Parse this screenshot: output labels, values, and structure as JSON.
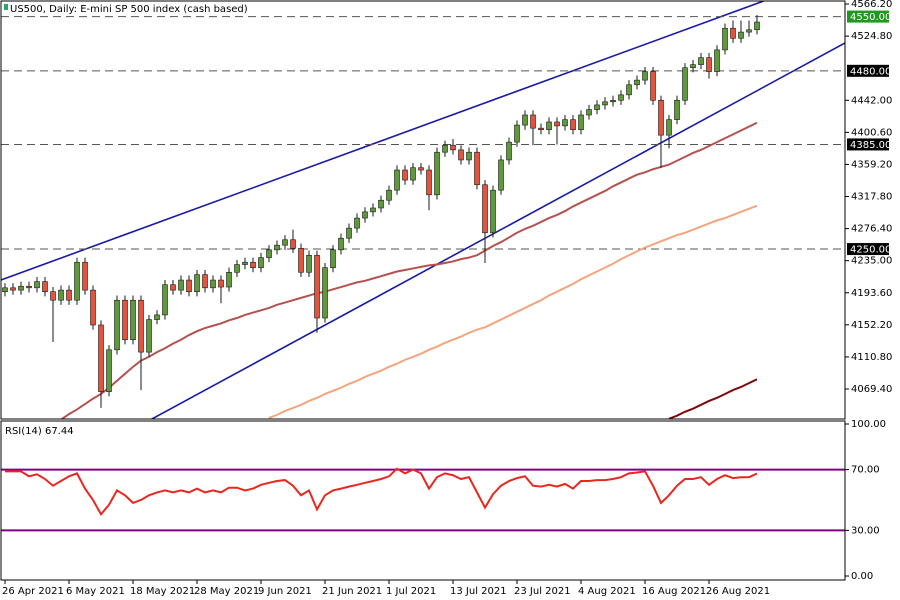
{
  "chart_data": [
    {
      "type": "candlestick",
      "title": "US500, Daily: E-mini SP 500 index (cash based)",
      "categories": [
        "26 Apr 2021",
        null,
        null,
        null,
        null,
        null,
        null,
        null,
        "6 May 2021",
        null,
        null,
        null,
        null,
        null,
        null,
        null,
        "18 May 2021",
        null,
        null,
        null,
        null,
        null,
        null,
        null,
        "28 May 2021",
        null,
        null,
        null,
        null,
        null,
        null,
        null,
        "9 Jun 2021",
        null,
        null,
        null,
        null,
        null,
        null,
        null,
        "21 Jun 2021",
        null,
        null,
        null,
        null,
        null,
        null,
        null,
        "1 Jul 2021",
        null,
        null,
        null,
        null,
        null,
        null,
        null,
        "13 Jul 2021",
        null,
        null,
        null,
        null,
        null,
        null,
        null,
        "23 Jul 2021",
        null,
        null,
        null,
        null,
        null,
        null,
        null,
        "4 Aug 2021",
        null,
        null,
        null,
        null,
        null,
        null,
        null,
        "16 Aug 2021",
        null,
        null,
        null,
        null,
        null,
        null,
        null,
        "26 Aug 2021",
        null,
        null,
        null,
        null,
        null,
        null
      ],
      "open": [
        4195,
        4200,
        4197,
        4202,
        4200,
        4208,
        4195,
        4184,
        4197,
        4184,
        4233,
        4197,
        4152,
        4066,
        4120,
        4184,
        4133,
        4184,
        4117,
        4159,
        4165,
        4204,
        4197,
        4210,
        4195,
        4217,
        4200,
        4210,
        4201,
        4220,
        4230,
        4233,
        4226,
        4239,
        4249,
        4255,
        4262,
        4251,
        4220,
        4242,
        4161,
        4226,
        4249,
        4264,
        4277,
        4290,
        4298,
        4303,
        4313,
        4326,
        4352,
        4339,
        4355,
        4352,
        4320,
        4375,
        4384,
        4378,
        4365,
        4375,
        4333,
        4271,
        4326,
        4365,
        4388,
        4410,
        4423,
        4406,
        4404,
        4414,
        4409,
        4417,
        4404,
        4423,
        4430,
        4436,
        4440,
        4442,
        4449,
        4462,
        4468,
        4479,
        4442,
        4397,
        4417,
        4442,
        4484,
        4488,
        4497,
        4479,
        4507,
        4535,
        4522,
        4530,
        4533
      ],
      "high": [
        4206,
        4206,
        4208,
        4208,
        4214,
        4214,
        4201,
        4203,
        4203,
        4239,
        4239,
        4203,
        4158,
        4126,
        4190,
        4190,
        4190,
        4190,
        4165,
        4171,
        4210,
        4210,
        4216,
        4216,
        4223,
        4223,
        4216,
        4216,
        4226,
        4236,
        4239,
        4239,
        4245,
        4255,
        4261,
        4268,
        4275,
        4257,
        4248,
        4248,
        4232,
        4255,
        4270,
        4283,
        4296,
        4304,
        4309,
        4319,
        4332,
        4358,
        4358,
        4361,
        4361,
        4358,
        4381,
        4390,
        4392,
        4384,
        4381,
        4381,
        4339,
        4332,
        4371,
        4394,
        4416,
        4429,
        4429,
        4412,
        4420,
        4420,
        4423,
        4423,
        4429,
        4436,
        4442,
        4446,
        4448,
        4455,
        4468,
        4474,
        4485,
        4485,
        4448,
        4423,
        4448,
        4490,
        4494,
        4503,
        4503,
        4513,
        4541,
        4545,
        4545,
        4545,
        4552
      ],
      "low": [
        4189,
        4191,
        4191,
        4194,
        4194,
        4189,
        4130,
        4178,
        4178,
        4178,
        4191,
        4146,
        4045,
        4060,
        4114,
        4127,
        4127,
        4068,
        4111,
        4153,
        4159,
        4191,
        4191,
        4189,
        4189,
        4194,
        4194,
        4180,
        4195,
        4214,
        4224,
        4220,
        4220,
        4233,
        4243,
        4249,
        4245,
        4214,
        4214,
        4142,
        4155,
        4220,
        4243,
        4258,
        4271,
        4284,
        4292,
        4297,
        4307,
        4320,
        4333,
        4333,
        4346,
        4300,
        4314,
        4369,
        4372,
        4359,
        4359,
        4327,
        4232,
        4265,
        4320,
        4359,
        4382,
        4404,
        4384,
        4398,
        4398,
        4385,
        4403,
        4398,
        4398,
        4417,
        4424,
        4430,
        4434,
        4436,
        4443,
        4456,
        4462,
        4436,
        4355,
        4380,
        4411,
        4436,
        4478,
        4482,
        4470,
        4473,
        4501,
        4516,
        4516,
        4524,
        4527
      ],
      "close": [
        4200,
        4197,
        4202,
        4200,
        4208,
        4195,
        4184,
        4197,
        4184,
        4233,
        4197,
        4152,
        4066,
        4120,
        4184,
        4133,
        4184,
        4117,
        4159,
        4165,
        4204,
        4197,
        4210,
        4195,
        4217,
        4200,
        4210,
        4201,
        4220,
        4230,
        4233,
        4226,
        4239,
        4249,
        4255,
        4262,
        4251,
        4220,
        4242,
        4161,
        4226,
        4249,
        4264,
        4277,
        4290,
        4298,
        4303,
        4313,
        4326,
        4352,
        4339,
        4355,
        4352,
        4320,
        4375,
        4384,
        4378,
        4365,
        4375,
        4333,
        4271,
        4326,
        4365,
        4388,
        4410,
        4423,
        4406,
        4404,
        4414,
        4409,
        4417,
        4404,
        4423,
        4430,
        4436,
        4440,
        4442,
        4449,
        4462,
        4468,
        4479,
        4442,
        4397,
        4417,
        4442,
        4484,
        4488,
        4497,
        4479,
        4507,
        4535,
        4522,
        4530,
        4533,
        4543
      ],
      "up_color": "#5e9a3a",
      "down_color": "#e4533b",
      "wick_color": "#1a1a1a",
      "moving_averages": [
        {
          "color": "#b5524f",
          "values": [
            null,
            null,
            null,
            null,
            null,
            null,
            null,
            4030,
            4037,
            4043,
            4050,
            4057,
            4063,
            4071,
            4080,
            4089,
            4098,
            4106,
            4111,
            4117,
            4122,
            4128,
            4133,
            4139,
            4144,
            4148,
            4151,
            4154,
            4158,
            4161,
            4165,
            4168,
            4171,
            4174,
            4178,
            4181,
            4184,
            4187,
            4190,
            4193,
            4195,
            4198,
            4201,
            4204,
            4207,
            4209,
            4212,
            4215,
            4218,
            4221,
            4223,
            4225,
            4227,
            4229,
            4230,
            4232,
            4234,
            4237,
            4239,
            4242,
            4248,
            4254,
            4259,
            4265,
            4271,
            4276,
            4280,
            4285,
            4290,
            4294,
            4299,
            4305,
            4310,
            4315,
            4320,
            4325,
            4331,
            4336,
            4341,
            4346,
            4349,
            4353,
            4356,
            4359,
            4364,
            4369,
            4374,
            4378,
            4383,
            4388,
            4393,
            4398,
            4403,
            4408,
            4413
          ]
        },
        {
          "color": "#f4a57e",
          "values": [
            null,
            null,
            null,
            null,
            null,
            null,
            null,
            null,
            null,
            null,
            null,
            null,
            null,
            null,
            null,
            null,
            null,
            null,
            null,
            null,
            null,
            null,
            null,
            null,
            null,
            null,
            null,
            null,
            null,
            null,
            null,
            null,
            null,
            4032,
            4036,
            4041,
            4045,
            4049,
            4054,
            4058,
            4063,
            4067,
            4071,
            4076,
            4080,
            4085,
            4089,
            4093,
            4098,
            4102,
            4107,
            4111,
            4115,
            4120,
            4124,
            4129,
            4133,
            4137,
            4142,
            4146,
            4149,
            4154,
            4159,
            4164,
            4169,
            4174,
            4179,
            4184,
            4190,
            4195,
            4200,
            4205,
            4211,
            4216,
            4221,
            4226,
            4231,
            4237,
            4242,
            4247,
            4252,
            4256,
            4260,
            4264,
            4268,
            4271,
            4275,
            4279,
            4283,
            4287,
            4290,
            4294,
            4298,
            4302,
            4306
          ]
        },
        {
          "color": "#7a0a0a",
          "values": [
            null,
            null,
            null,
            null,
            null,
            null,
            null,
            null,
            null,
            null,
            null,
            null,
            null,
            null,
            null,
            null,
            null,
            null,
            null,
            null,
            null,
            null,
            null,
            null,
            null,
            null,
            null,
            null,
            null,
            null,
            null,
            null,
            null,
            null,
            null,
            null,
            null,
            null,
            null,
            null,
            null,
            null,
            null,
            null,
            null,
            null,
            null,
            null,
            null,
            null,
            null,
            null,
            null,
            null,
            null,
            null,
            null,
            null,
            null,
            null,
            null,
            null,
            null,
            null,
            null,
            null,
            null,
            null,
            null,
            null,
            null,
            null,
            null,
            null,
            null,
            null,
            null,
            null,
            null,
            null,
            null,
            null,
            null,
            4031,
            4035,
            4040,
            4044,
            4049,
            4054,
            4058,
            4063,
            4068,
            4072,
            4077,
            4082
          ]
        }
      ],
      "levels": [
        {
          "value": 4550,
          "label": "4550.00",
          "color": "#555555",
          "label_fill": "#1f9a1f"
        },
        {
          "value": 4480,
          "label": "4480.00",
          "color": "#555555",
          "label_fill": "#000000"
        },
        {
          "value": 4385,
          "label": "4385.00",
          "color": "#555555",
          "label_fill": "#000000"
        },
        {
          "value": 4250,
          "label": "4250.00",
          "color": "#555555",
          "label_fill": "#000000"
        }
      ],
      "ylim": [
        4029.4,
        4571.4
      ],
      "yticks": [
        {
          "value": 4566.2,
          "label": "4566.20"
        },
        {
          "value": 4524.8,
          "label": "4524.80"
        },
        {
          "value": 4442,
          "label": "4442.00"
        },
        {
          "value": 4400.6,
          "label": "4400.60"
        },
        {
          "value": 4359.2,
          "label": "4359.20"
        },
        {
          "value": 4317.8,
          "label": "4317.80"
        },
        {
          "value": 4276.4,
          "label": "4276.40"
        },
        {
          "value": 4235,
          "label": "4235.00"
        },
        {
          "value": 4193.6,
          "label": "4193.60"
        },
        {
          "value": 4152.2,
          "label": "4152.20"
        },
        {
          "value": 4110.8,
          "label": "4110.80"
        },
        {
          "value": 4069.4,
          "label": "4069.40"
        }
      ]
    },
    {
      "type": "line",
      "title": "RSI(14) 67.44",
      "color": "#e8281e",
      "values": [
        68.8,
        68.8,
        68.8,
        65.6,
        66.9,
        63.8,
        59.4,
        62.5,
        65.6,
        67.5,
        57.5,
        50,
        40.6,
        46.9,
        56.3,
        53.1,
        48.1,
        50,
        53.1,
        55,
        56.3,
        55,
        56.3,
        55,
        57.5,
        55,
        56.3,
        55,
        58.1,
        58.1,
        56.3,
        57.5,
        60,
        61.3,
        62.5,
        63.1,
        59.4,
        53.1,
        56.3,
        43.8,
        53.1,
        56.3,
        57.5,
        58.8,
        60,
        61.3,
        62.5,
        63.8,
        65.6,
        70.6,
        67.5,
        70,
        67.5,
        57.5,
        65,
        67.5,
        66.3,
        63.8,
        65,
        55,
        45,
        53.8,
        59.4,
        62.5,
        64.4,
        65.6,
        59.4,
        58.8,
        60,
        58.8,
        60.6,
        57.5,
        62.5,
        62.5,
        63.1,
        63.1,
        63.8,
        65,
        67.5,
        68.1,
        68.8,
        59.4,
        48.1,
        53.1,
        59.4,
        63.8,
        63.8,
        65,
        60,
        63.8,
        66.3,
        64.4,
        65,
        65,
        67.44
      ],
      "levels": [
        70,
        30
      ],
      "level_color": "#800080",
      "ylim": [
        0,
        100
      ],
      "yticks": [
        {
          "value": 100,
          "label": "100.00"
        },
        {
          "value": 70,
          "label": "70.00"
        },
        {
          "value": 30,
          "label": "30.00"
        },
        {
          "value": 0,
          "label": "0.00"
        }
      ]
    }
  ]
}
